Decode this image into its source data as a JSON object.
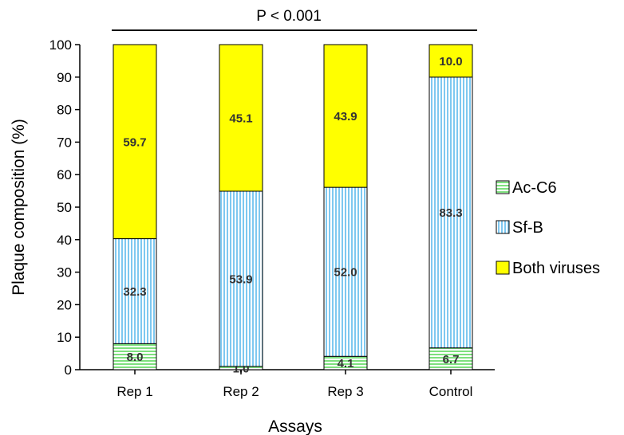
{
  "chart_data": {
    "type": "bar",
    "stacked": true,
    "categories": [
      "Rep 1",
      "Rep 2",
      "Rep 3",
      "Control"
    ],
    "series": [
      {
        "name": "Ac-C6",
        "values": [
          8.0,
          1.0,
          4.1,
          6.7
        ],
        "labels": [
          "8.0",
          "1.0",
          "4.1",
          "6.7"
        ],
        "color": "#7EE07E",
        "pattern": "horizontal-stripes"
      },
      {
        "name": "Sf-B",
        "values": [
          32.3,
          53.9,
          52.0,
          83.3
        ],
        "labels": [
          "32.3",
          "53.9",
          "52.0",
          "83.3"
        ],
        "color": "#7EC8F0",
        "pattern": "vertical-stripes"
      },
      {
        "name": "Both viruses",
        "values": [
          59.7,
          45.1,
          43.9,
          10.0
        ],
        "labels": [
          "59.7",
          "45.1",
          "43.9",
          "10.0"
        ],
        "color": "#FFFF00",
        "pattern": "solid"
      }
    ],
    "title": "",
    "annotation": "P < 0.001",
    "xlabel": "Assays",
    "ylabel": "Plaque composition (%)",
    "ylim": [
      0,
      100
    ],
    "yticks": [
      "0",
      "10",
      "20",
      "30",
      "40",
      "50",
      "60",
      "70",
      "80",
      "90",
      "100"
    ],
    "grid": false,
    "legend_position": "right"
  }
}
